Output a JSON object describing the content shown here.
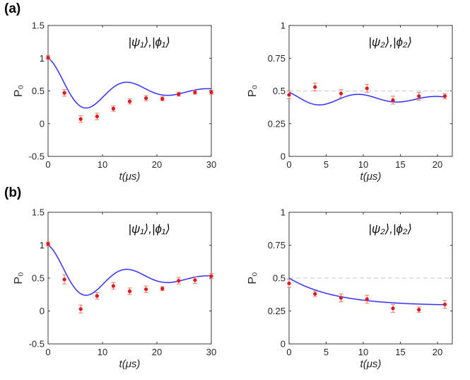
{
  "panel_labels": [
    "(a)",
    "(b)"
  ],
  "chart_data": [
    {
      "type": "line",
      "panel": "(a)",
      "title": "|ψ₁⟩,|ϕ₁⟩",
      "xlabel": "t(μs)",
      "ylabel": "P₀",
      "xlim": [
        0,
        30
      ],
      "ylim": [
        -0.5,
        1.5
      ],
      "xticks": [
        0,
        10,
        20,
        30
      ],
      "yticks": [
        -0.5,
        0,
        0.5,
        1,
        1.5
      ],
      "ytick_labels": [
        "-0.5",
        "0",
        "0.5",
        "1",
        "1.5"
      ],
      "dashed_ref": null,
      "theory": {
        "base": 0.5,
        "amp": 0.5,
        "k": 0.09,
        "w": 0.42,
        "phase": 0
      },
      "series": {
        "name": "experiment",
        "x": [
          0,
          3,
          6,
          9,
          12,
          15,
          18,
          21,
          24,
          27,
          30
        ],
        "y": [
          1.01,
          0.47,
          0.07,
          0.11,
          0.23,
          0.34,
          0.39,
          0.38,
          0.45,
          0.48,
          0.48
        ],
        "err": [
          0.03,
          0.05,
          0.05,
          0.05,
          0.04,
          0.04,
          0.04,
          0.03,
          0.03,
          0.03,
          0.03
        ]
      }
    },
    {
      "type": "line",
      "panel": "(a)",
      "title": "|ψ₂⟩,|ϕ₂⟩",
      "xlabel": "t(μs)",
      "ylabel": "P₀",
      "xlim": [
        0,
        22
      ],
      "ylim": [
        0,
        1
      ],
      "xticks": [
        0,
        5,
        10,
        15,
        20
      ],
      "yticks": [
        0,
        0.25,
        0.5,
        0.75,
        1
      ],
      "ytick_labels": [
        "0",
        "0.25",
        "0.5",
        "0.75",
        "1"
      ],
      "dashed_ref": 0.5,
      "theory": {
        "base": 0.44,
        "amp": 0.06,
        "k": 0.06,
        "w": 0.6,
        "phase": 0.6
      },
      "series": {
        "name": "experiment",
        "x": [
          0,
          3.5,
          7,
          10.5,
          14,
          17.5,
          21
        ],
        "y": [
          0.47,
          0.53,
          0.48,
          0.52,
          0.43,
          0.46,
          0.46
        ],
        "err": [
          0.03,
          0.03,
          0.03,
          0.03,
          0.03,
          0.03,
          0.02
        ]
      }
    },
    {
      "type": "line",
      "panel": "(b)",
      "title": "|ψ₁⟩,|ϕ₁⟩",
      "xlabel": "t(μs)",
      "ylabel": "P₀",
      "xlim": [
        0,
        30
      ],
      "ylim": [
        -0.5,
        1.5
      ],
      "xticks": [
        0,
        10,
        20,
        30
      ],
      "yticks": [
        -0.5,
        0,
        0.5,
        1,
        1.5
      ],
      "ytick_labels": [
        "-0.5",
        "0",
        "0.5",
        "1",
        "1.5"
      ],
      "dashed_ref": null,
      "theory": {
        "base": 0.5,
        "amp": 0.5,
        "k": 0.09,
        "w": 0.42,
        "phase": 0
      },
      "series": {
        "name": "experiment",
        "x": [
          0,
          3,
          6,
          9,
          12,
          15,
          18,
          21,
          24,
          27,
          30
        ],
        "y": [
          1.02,
          0.48,
          0.03,
          0.23,
          0.38,
          0.3,
          0.33,
          0.34,
          0.46,
          0.47,
          0.53
        ],
        "err": [
          0.03,
          0.07,
          0.06,
          0.05,
          0.05,
          0.05,
          0.05,
          0.03,
          0.05,
          0.05,
          0.04
        ]
      }
    },
    {
      "type": "line",
      "panel": "(b)",
      "title": "|ψ₂⟩,|ϕ₂⟩",
      "xlabel": "t(μs)",
      "ylabel": "P₀",
      "xlim": [
        0,
        22
      ],
      "ylim": [
        0,
        1
      ],
      "xticks": [
        0,
        5,
        10,
        15,
        20
      ],
      "yticks": [
        0,
        0.25,
        0.5,
        0.75,
        1
      ],
      "ytick_labels": [
        "0",
        "0.25",
        "0.5",
        "0.75",
        "1"
      ],
      "dashed_ref": 0.5,
      "theory": {
        "base": 0.29,
        "amp": 0.21,
        "k": 0.16,
        "w": 0,
        "phase": 0
      },
      "series": {
        "name": "experiment",
        "x": [
          0,
          3.5,
          7,
          10.5,
          14,
          17.5,
          21
        ],
        "y": [
          0.46,
          0.38,
          0.35,
          0.34,
          0.27,
          0.26,
          0.3
        ],
        "err": [
          0.03,
          0.02,
          0.03,
          0.03,
          0.03,
          0.02,
          0.03
        ]
      }
    }
  ]
}
